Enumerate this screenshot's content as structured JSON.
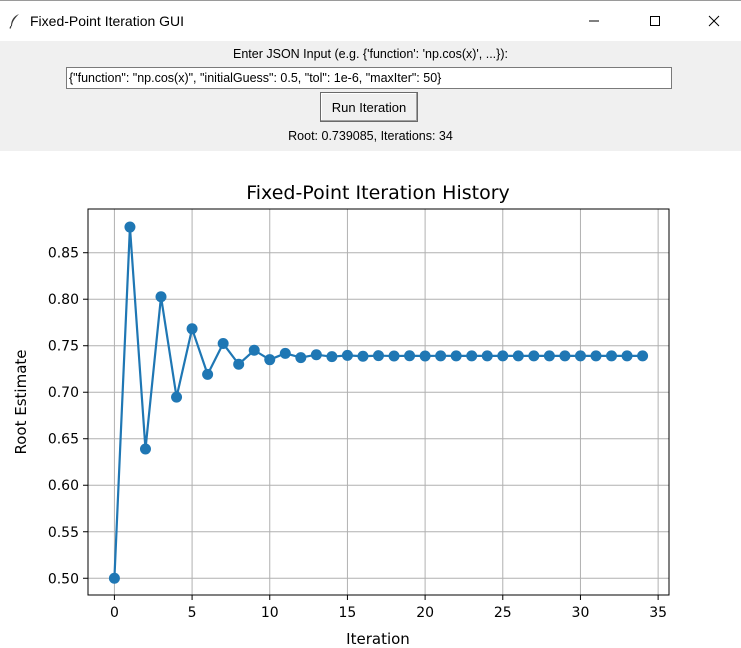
{
  "window": {
    "title": "Fixed-Point Iteration GUI",
    "icon": "feather-icon"
  },
  "controls": {
    "prompt_label": "Enter JSON Input (e.g. {'function': 'np.cos(x)', ...}):",
    "json_input_value": "{\"function\": \"np.cos(x)\", \"initialGuess\": 0.5, \"tol\": 1e-6, \"maxIter\": 50}",
    "run_button_label": "Run Iteration",
    "result_text": "Root: 0.739085, Iterations: 34"
  },
  "colors": {
    "series": "#1f77b4",
    "grid": "#b0b0b0"
  },
  "chart_data": {
    "type": "line",
    "title": "Fixed-Point Iteration History",
    "xlabel": "Iteration",
    "ylabel": "Root Estimate",
    "grid": true,
    "xlim": [
      -1.7,
      35.7
    ],
    "ylim": [
      0.482,
      0.897
    ],
    "xticks": [
      0,
      5,
      10,
      15,
      20,
      25,
      30,
      35
    ],
    "yticks": [
      0.5,
      0.55,
      0.6,
      0.65,
      0.7,
      0.75,
      0.8,
      0.85
    ],
    "ytick_labels": [
      "0.50",
      "0.55",
      "0.60",
      "0.65",
      "0.70",
      "0.75",
      "0.80",
      "0.85"
    ],
    "x": [
      0,
      1,
      2,
      3,
      4,
      5,
      6,
      7,
      8,
      9,
      10,
      11,
      12,
      13,
      14,
      15,
      16,
      17,
      18,
      19,
      20,
      21,
      22,
      23,
      24,
      25,
      26,
      27,
      28,
      29,
      30,
      31,
      32,
      33,
      34
    ],
    "values": [
      0.5,
      0.877583,
      0.639012,
      0.802685,
      0.694778,
      0.768196,
      0.719165,
      0.752356,
      0.730081,
      0.74512,
      0.735006,
      0.741827,
      0.737236,
      0.74033,
      0.738246,
      0.73965,
      0.738705,
      0.739341,
      0.738912,
      0.739201,
      0.739007,
      0.739138,
      0.73905,
      0.739109,
      0.739069,
      0.739096,
      0.739078,
      0.73909,
      0.739082,
      0.739088,
      0.739084,
      0.739086,
      0.739085,
      0.739086,
      0.739085
    ]
  }
}
